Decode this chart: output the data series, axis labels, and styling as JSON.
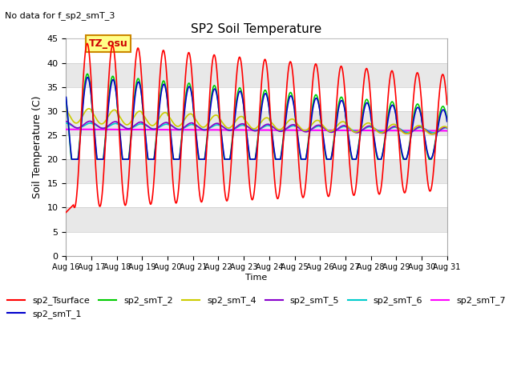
{
  "title": "SP2 Soil Temperature",
  "no_data_text": "No data for f_sp2_smT_3",
  "xlabel": "Time",
  "ylabel": "Soil Temperature (C)",
  "tz_label": "TZ_osu",
  "ylim": [
    0,
    45
  ],
  "yticks": [
    0,
    5,
    10,
    15,
    20,
    25,
    30,
    35,
    40,
    45
  ],
  "x_tick_labels": [
    "Aug 16",
    "Aug 17",
    "Aug 18",
    "Aug 19",
    "Aug 20",
    "Aug 21",
    "Aug 22",
    "Aug 23",
    "Aug 24",
    "Aug 25",
    "Aug 26",
    "Aug 27",
    "Aug 28",
    "Aug 29",
    "Aug 30",
    "Aug 31"
  ],
  "fig_width": 6.4,
  "fig_height": 4.8,
  "dpi": 100,
  "series_colors": {
    "sp2_Tsurface": "#ff0000",
    "sp2_smT_1": "#0000cc",
    "sp2_smT_2": "#00cc00",
    "sp2_smT_4": "#cccc00",
    "sp2_smT_5": "#8800cc",
    "sp2_smT_6": "#00cccc",
    "sp2_smT_7": "#ff00ff"
  }
}
